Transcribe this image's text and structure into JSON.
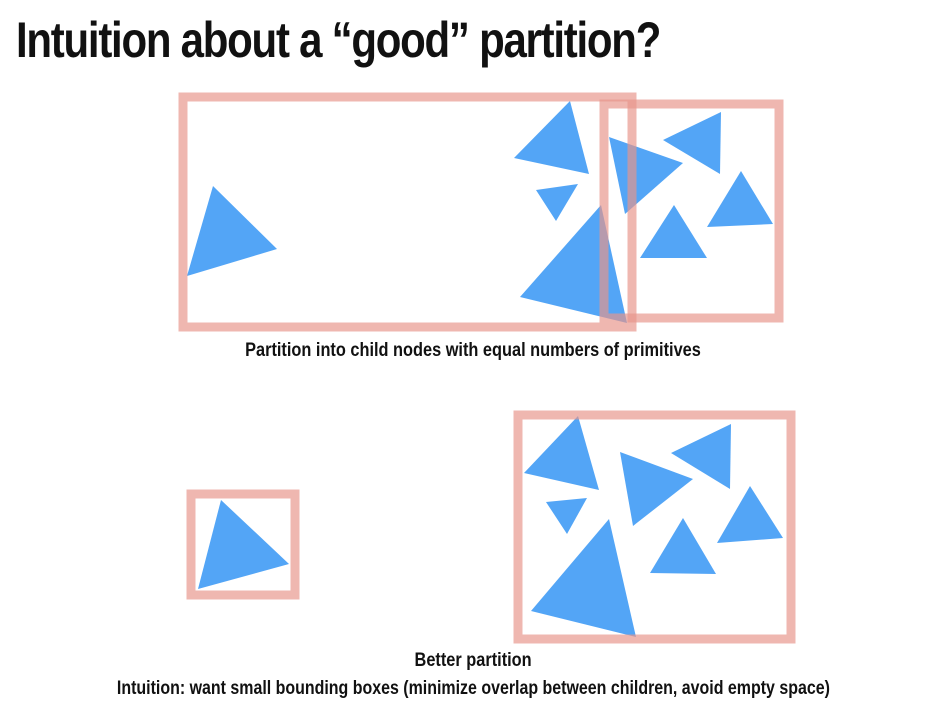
{
  "slide": {
    "title": "Intuition about a “good” partition?"
  },
  "top_diagram": {
    "caption": "Partition into child nodes with equal numbers of primitives"
  },
  "bottom_diagram": {
    "caption": "Better partition"
  },
  "footer": {
    "intuition": "Intuition: want small bounding boxes (minimize overlap between children, avoid empty space)"
  },
  "colors": {
    "primitive": "#4aa0f6",
    "bounding_box": "#e7958a",
    "text": "#111111"
  }
}
